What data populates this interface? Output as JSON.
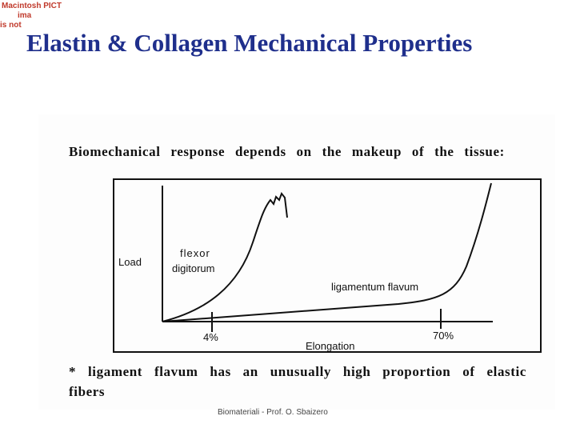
{
  "header": {
    "pict_notice": [
      "Macintosh PICT",
      "ima",
      "is not"
    ],
    "title": "Elastin & Collagen Mechanical Properties"
  },
  "figure": {
    "caption": "Biomechanical response depends on the makeup of the tissue:",
    "y_label": "Load",
    "x_label": "Elongation",
    "curve_labels": {
      "flexor": [
        "flexor",
        "digitorum"
      ],
      "ligamentum": "ligamentum flavum"
    },
    "tick_labels": [
      "4%",
      "70%"
    ],
    "footnote": "* ligament flavum has an unusually high proportion of elastic fibers"
  },
  "footer": "Biomateriali - Prof. O. Sbaizero"
}
